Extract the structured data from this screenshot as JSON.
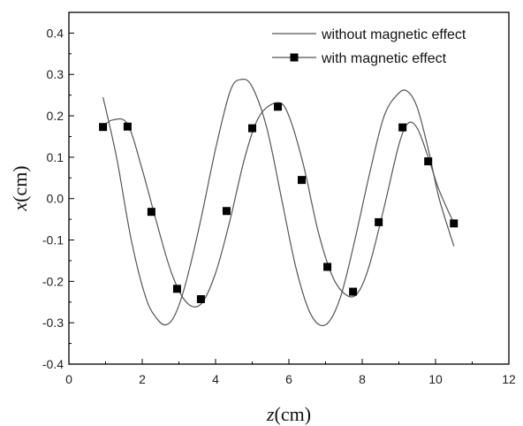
{
  "chart_data": {
    "type": "line",
    "xlabel": {
      "variable": "z",
      "unit": "(cm)"
    },
    "ylabel": {
      "variable": "x",
      "unit": "(cm)"
    },
    "xlim": [
      0,
      12
    ],
    "ylim": [
      -0.4,
      0.45
    ],
    "xticks": [
      0,
      2,
      4,
      6,
      8,
      10,
      12
    ],
    "yticks": [
      -0.4,
      -0.3,
      -0.2,
      -0.1,
      0.0,
      0.1,
      0.2,
      0.3,
      0.4
    ],
    "ytick_labels": [
      "-0.4",
      "-0.3",
      "-0.2",
      "-0.1",
      "0.0",
      "0.1",
      "0.2",
      "0.3",
      "0.4"
    ],
    "grid": false,
    "legend_position": "top-right",
    "series": [
      {
        "name": "without magnetic effect",
        "style": "line",
        "color": "#555555",
        "x": [
          0.93,
          1.3,
          1.7,
          2.1,
          2.4,
          2.65,
          2.9,
          3.2,
          3.6,
          4.0,
          4.4,
          4.7,
          5.0,
          5.4,
          5.8,
          6.2,
          6.6,
          7.0,
          7.4,
          7.8,
          8.2,
          8.6,
          9.0,
          9.25,
          9.5,
          9.8,
          10.1,
          10.5
        ],
        "y": [
          0.245,
          0.1,
          -0.1,
          -0.24,
          -0.29,
          -0.305,
          -0.28,
          -0.2,
          -0.05,
          0.12,
          0.26,
          0.288,
          0.27,
          0.17,
          0.0,
          -0.17,
          -0.28,
          -0.305,
          -0.24,
          -0.1,
          0.06,
          0.2,
          0.255,
          0.258,
          0.22,
          0.12,
          0.0,
          -0.115
        ]
      },
      {
        "name": "with magnetic effect",
        "style": "line-markers",
        "color": "#555555",
        "marker_color": "#000000",
        "x": [
          0.93,
          1.2,
          1.6,
          2.0,
          2.4,
          2.8,
          3.2,
          3.6,
          4.0,
          4.4,
          4.8,
          5.2,
          5.7,
          6.0,
          6.4,
          6.8,
          7.2,
          7.6,
          7.9,
          8.2,
          8.6,
          9.0,
          9.25,
          9.5,
          9.8,
          10.1,
          10.5
        ],
        "y": [
          0.175,
          0.19,
          0.18,
          0.07,
          -0.06,
          -0.18,
          -0.25,
          -0.255,
          -0.18,
          -0.05,
          0.1,
          0.2,
          0.232,
          0.2,
          0.08,
          -0.08,
          -0.19,
          -0.235,
          -0.225,
          -0.16,
          -0.02,
          0.13,
          0.182,
          0.17,
          0.1,
          0.02,
          -0.06
        ],
        "markers": {
          "x": [
            0.93,
            1.6,
            2.25,
            2.95,
            3.6,
            4.3,
            5.0,
            5.7,
            6.35,
            7.05,
            7.75,
            8.45,
            9.1,
            9.8,
            10.5
          ],
          "y": [
            0.173,
            0.174,
            -0.032,
            -0.218,
            -0.243,
            -0.03,
            0.17,
            0.222,
            0.045,
            -0.165,
            -0.225,
            -0.057,
            0.172,
            0.09,
            -0.06
          ]
        }
      }
    ]
  }
}
